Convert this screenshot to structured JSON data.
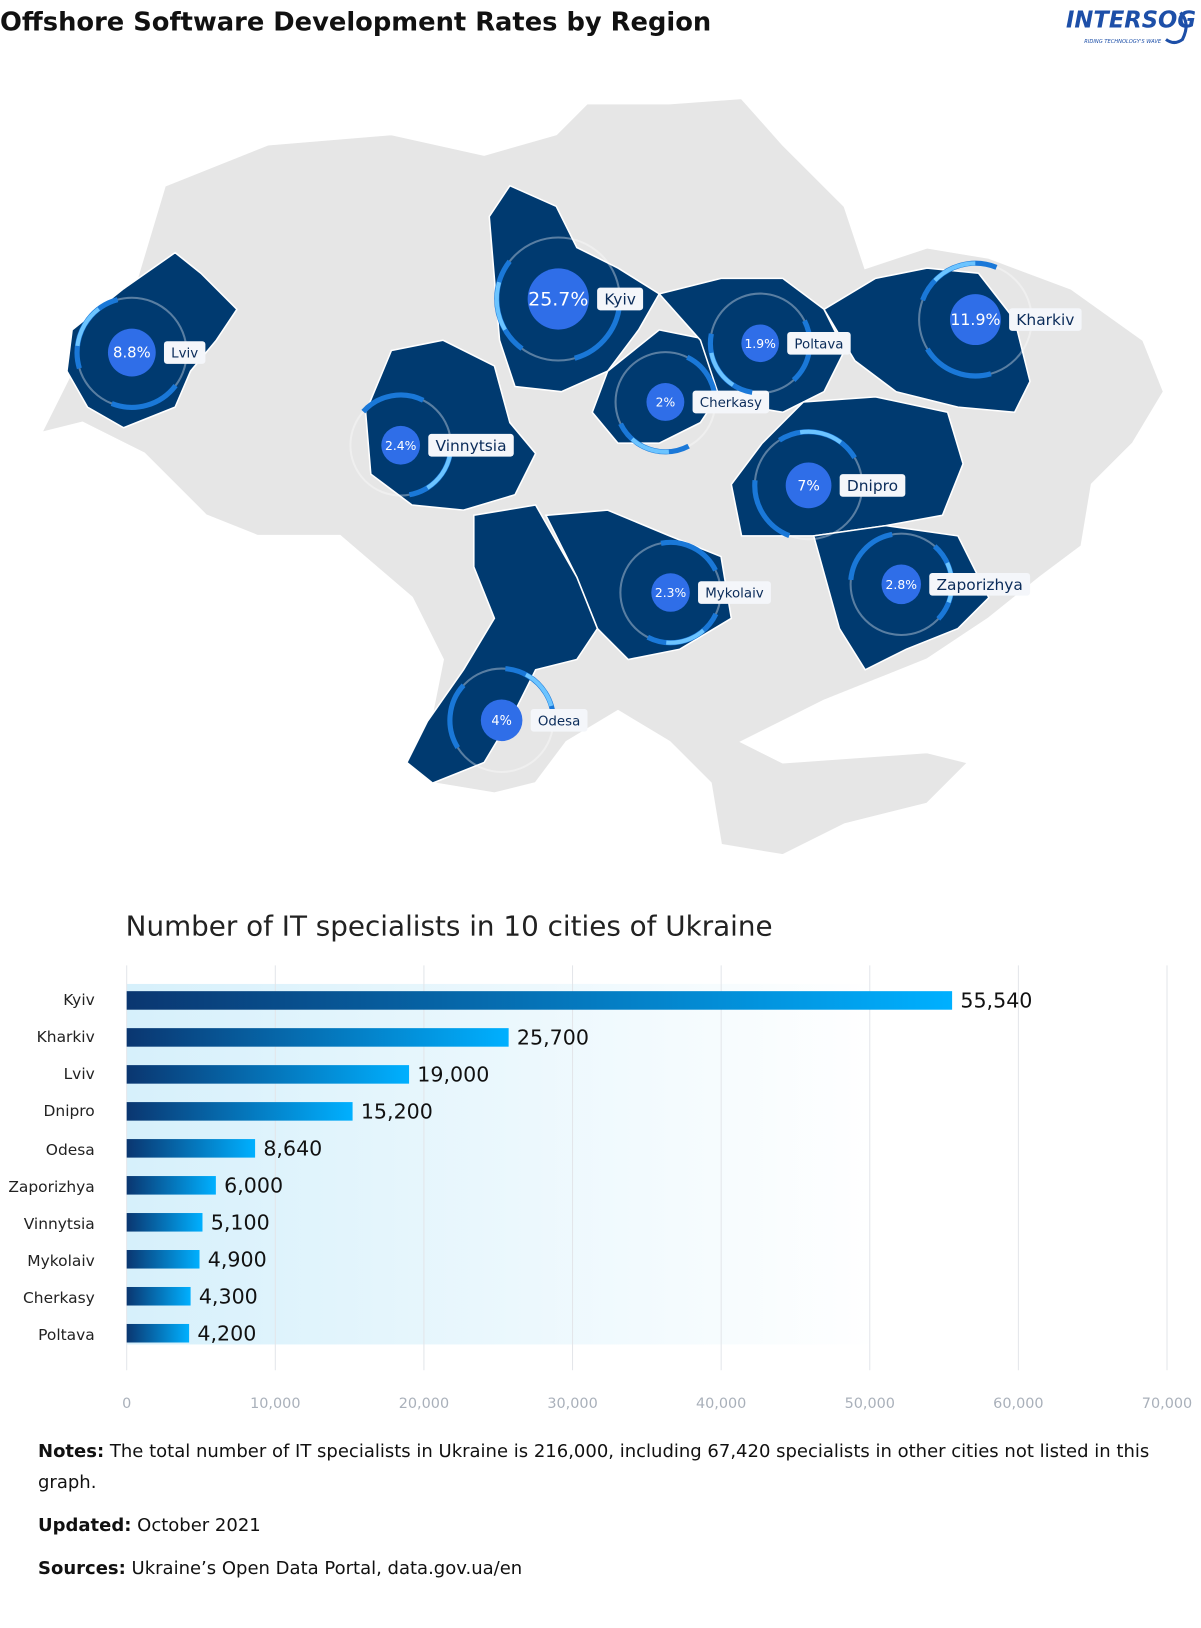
{
  "header": {
    "title": "Offshore Software Development Rates by Region",
    "logo": "INTERSOG",
    "tagline": "RIDING TECHNOLOGY'S WAVE"
  },
  "chart_data": [
    {
      "type": "map",
      "categories": [
        "Kyiv",
        "Lviv",
        "Kharkiv",
        "Dnipro",
        "Odesa",
        "Zaporizhya",
        "Vinnytsia",
        "Mykolaiv",
        "Cherkasy",
        "Poltava"
      ],
      "values": [
        25.7,
        8.8,
        11.9,
        7,
        4,
        2.8,
        2.4,
        2.3,
        2,
        1.9
      ],
      "value_labels": [
        "25.7%",
        "8.8%",
        "11.9%",
        "7%",
        "4%",
        "2.8%",
        "2.4%",
        "2.3%",
        "2%",
        "1.9%"
      ],
      "color": "#2f6ee8"
    },
    {
      "type": "bar",
      "orientation": "horizontal",
      "title": "Number of IT specialists in 10 cities of Ukraine",
      "categories": [
        "Kyiv",
        "Kharkiv",
        "Lviv",
        "Dnipro",
        "Odesa",
        "Zaporizhya",
        "Vinnytsia",
        "Mykolaiv",
        "Cherkasy",
        "Poltava"
      ],
      "values": [
        55540,
        25700,
        19000,
        15200,
        8640,
        6000,
        5100,
        4900,
        4300,
        4200
      ],
      "value_labels": [
        "55,540",
        "25,700",
        "19,000",
        "15,200",
        "8,640",
        "6,000",
        "5,100",
        "4,900",
        "4,300",
        "4,200"
      ],
      "gradient": [
        "#0a3670",
        "#00b0ff"
      ],
      "xlim": [
        0,
        70000
      ],
      "xticks": [
        0,
        {
          "value": 10000,
          "label": "10,000"
        },
        {
          "value": 20000,
          "label": "20,000"
        },
        {
          "value": 30000,
          "label": "30,000"
        },
        {
          "value": 40000,
          "label": "40,000"
        },
        {
          "value": 50000,
          "label": "50,000"
        },
        {
          "value": 60000,
          "label": "60,000"
        },
        {
          "value": 70000,
          "label": "70,000"
        }
      ],
      "grid": true
    }
  ],
  "notes": [
    {
      "label": "Notes:",
      "text": "The total number of IT specialists in Ukraine is 216,000, including 67,420 specialists in other cities not listed in this graph."
    },
    {
      "label": "Updated:",
      "text": "October 2021"
    },
    {
      "label": "Sources:",
      "text": "Ukraine’s Open Data Portal, data.gov.ua/en"
    }
  ]
}
